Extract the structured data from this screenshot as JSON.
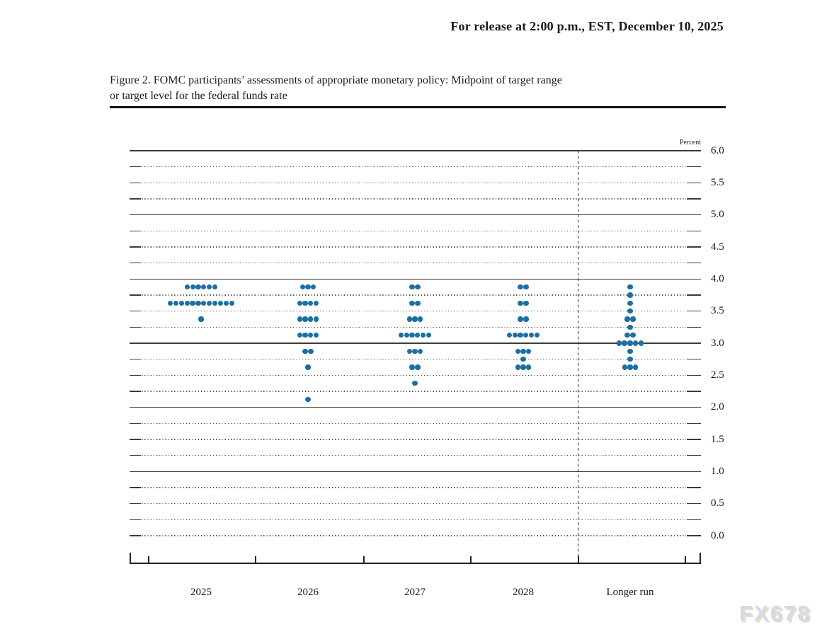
{
  "page": {
    "release_line": "For release at 2:00 p.m., EST, December 10, 2025",
    "figure_title": {
      "line1": "Figure 2. FOMC participants’ assessments of appropriate monetary policy: Midpoint of target range",
      "line2": "or target level for the federal funds rate"
    },
    "watermark": "FX678"
  },
  "chart_data": {
    "type": "scatter",
    "subtype": "fomc-dot-plot",
    "title": "Figure 2. FOMC participants’ assessments of appropriate monetary policy: Midpoint of target range or target level for the federal funds rate",
    "ylabel": "Percent",
    "xlabel": "",
    "ylim": [
      0.0,
      6.0
    ],
    "y_label_step": 0.5,
    "y_grid_step": 0.25,
    "grid": true,
    "legend": false,
    "solid_gridlines": [
      6.0,
      5.0,
      4.0,
      3.0,
      2.0,
      1.0
    ],
    "ytick_labels": [
      "6.0",
      "5.5",
      "5.0",
      "4.5",
      "4.0",
      "3.5",
      "3.0",
      "2.5",
      "2.0",
      "1.5",
      "1.0",
      "0.5",
      "0.0"
    ],
    "categories": [
      "2025",
      "2026",
      "2027",
      "2028",
      "Longer run"
    ],
    "separator_before_category": "Longer run",
    "dot_color": "#1b6fa3",
    "participants_per_year": 19,
    "series": [
      {
        "name": "2025",
        "dots": [
          {
            "rate": 3.875,
            "count": 6
          },
          {
            "rate": 3.625,
            "count": 12
          },
          {
            "rate": 3.375,
            "count": 1
          }
        ]
      },
      {
        "name": "2026",
        "dots": [
          {
            "rate": 3.875,
            "count": 3
          },
          {
            "rate": 3.625,
            "count": 4
          },
          {
            "rate": 3.375,
            "count": 4
          },
          {
            "rate": 3.125,
            "count": 4
          },
          {
            "rate": 2.875,
            "count": 2
          },
          {
            "rate": 2.625,
            "count": 1
          },
          {
            "rate": 2.125,
            "count": 1
          }
        ]
      },
      {
        "name": "2027",
        "dots": [
          {
            "rate": 3.875,
            "count": 2
          },
          {
            "rate": 3.625,
            "count": 2
          },
          {
            "rate": 3.375,
            "count": 3
          },
          {
            "rate": 3.125,
            "count": 6
          },
          {
            "rate": 2.875,
            "count": 3
          },
          {
            "rate": 2.625,
            "count": 2
          },
          {
            "rate": 2.375,
            "count": 1
          }
        ]
      },
      {
        "name": "2028",
        "dots": [
          {
            "rate": 3.875,
            "count": 2
          },
          {
            "rate": 3.625,
            "count": 2
          },
          {
            "rate": 3.375,
            "count": 2
          },
          {
            "rate": 3.125,
            "count": 6
          },
          {
            "rate": 2.875,
            "count": 3
          },
          {
            "rate": 2.75,
            "count": 1
          },
          {
            "rate": 2.625,
            "count": 3
          }
        ]
      },
      {
        "name": "Longer run",
        "dots": [
          {
            "rate": 3.875,
            "count": 1
          },
          {
            "rate": 3.75,
            "count": 1
          },
          {
            "rate": 3.625,
            "count": 1
          },
          {
            "rate": 3.5,
            "count": 1
          },
          {
            "rate": 3.375,
            "count": 2
          },
          {
            "rate": 3.25,
            "count": 1
          },
          {
            "rate": 3.125,
            "count": 2
          },
          {
            "rate": 3.0,
            "count": 5
          },
          {
            "rate": 2.875,
            "count": 1
          },
          {
            "rate": 2.75,
            "count": 1
          },
          {
            "rate": 2.625,
            "count": 3
          }
        ]
      }
    ]
  }
}
